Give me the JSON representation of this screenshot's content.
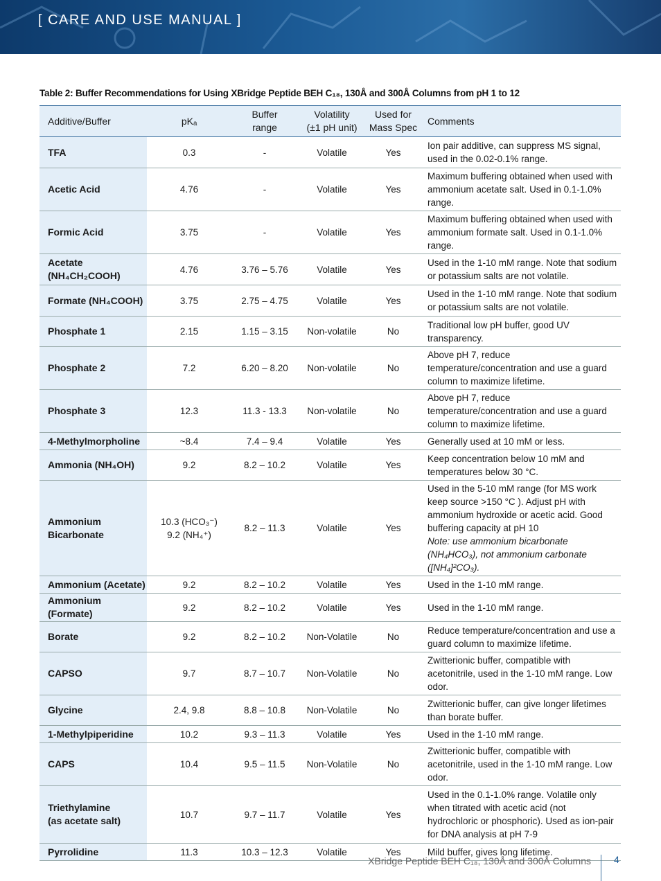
{
  "header": {
    "title": "[ CARE AND USE MANUAL ]"
  },
  "table": {
    "caption": "Table 2: Buffer Recommendations for Using XBridge Peptide BEH C₁₈, 130Å and 300Å Columns from pH 1 to 12",
    "columns": [
      "Additive/Buffer",
      "pKₐ",
      "Buffer\nrange",
      "Volatility\n(±1 pH unit)",
      "Used for\nMass Spec",
      "Comments"
    ],
    "rows": [
      {
        "additive": "TFA",
        "pka": "0.3",
        "range": "-",
        "volatility": "Volatile",
        "mass_spec": "Yes",
        "comment": "Ion pair additive, can suppress MS signal, used in the 0.02-0.1% range."
      },
      {
        "additive": "Acetic Acid",
        "pka": "4.76",
        "range": "-",
        "volatility": "Volatile",
        "mass_spec": "Yes",
        "comment": "Maximum buffering obtained when used with ammonium acetate salt. Used in 0.1-1.0% range."
      },
      {
        "additive": "Formic Acid",
        "pka": "3.75",
        "range": "-",
        "volatility": "Volatile",
        "mass_spec": "Yes",
        "comment": "Maximum buffering obtained when used with ammonium formate salt. Used in 0.1-1.0% range."
      },
      {
        "additive": "Acetate\n(NH₄CH₂COOH)",
        "pka": "4.76",
        "range": "3.76 – 5.76",
        "volatility": "Volatile",
        "mass_spec": "Yes",
        "comment": "Used in the 1-10 mM range. Note that sodium or potassium salts are not volatile."
      },
      {
        "additive": "Formate (NH₄COOH)",
        "pka": "3.75",
        "range": "2.75 – 4.75",
        "volatility": "Volatile",
        "mass_spec": "Yes",
        "comment": "Used in the 1-10 mM range. Note that sodium or potassium salts are not volatile."
      },
      {
        "additive": "Phosphate 1",
        "pka": "2.15",
        "range": "1.15 – 3.15",
        "volatility": "Non-volatile",
        "mass_spec": "No",
        "comment": "Traditional low pH buffer, good UV transparency."
      },
      {
        "additive": "Phosphate 2",
        "pka": "7.2",
        "range": "6.20 – 8.20",
        "volatility": "Non-volatile",
        "mass_spec": "No",
        "comment": "Above pH 7, reduce temperature/concentration and use a guard column to maximize lifetime."
      },
      {
        "additive": "Phosphate 3",
        "pka": "12.3",
        "range": "11.3 - 13.3",
        "volatility": "Non-volatile",
        "mass_spec": "No",
        "comment": "Above pH 7, reduce temperature/concentration and use a guard column to maximize lifetime."
      },
      {
        "additive": "4-Methylmorpholine",
        "pka": "~8.4",
        "range": "7.4 – 9.4",
        "volatility": "Volatile",
        "mass_spec": "Yes",
        "comment": "Generally used at 10 mM or less."
      },
      {
        "additive": "Ammonia (NH₄OH)",
        "pka": "9.2",
        "range": "8.2 – 10.2",
        "volatility": "Volatile",
        "mass_spec": "Yes",
        "comment": "Keep concentration below 10 mM and temperatures below 30 °C."
      },
      {
        "additive": "Ammonium\nBicarbonate",
        "pka": "10.3 (HCO₃⁻)\n9.2 (NH₄⁺)",
        "range": "8.2 – 11.3",
        "volatility": "Volatile",
        "mass_spec": "Yes",
        "comment": "Used in the 5-10 mM range (for MS work keep source >150 °C ). Adjust pH with ammonium hydroxide or acetic acid. Good buffering capacity at pH 10",
        "note": "Note: use ammonium bicarbonate (NH₄HCO₃), not ammonium carbonate ([NH₄]²CO₃)."
      },
      {
        "additive": "Ammonium (Acetate)",
        "pka": "9.2",
        "range": "8.2 – 10.2",
        "volatility": "Volatile",
        "mass_spec": "Yes",
        "comment": "Used in the 1-10 mM range."
      },
      {
        "additive": "Ammonium (Formate)",
        "pka": "9.2",
        "range": "8.2 – 10.2",
        "volatility": "Volatile",
        "mass_spec": "Yes",
        "comment": "Used in the 1-10 mM range."
      },
      {
        "additive": "Borate",
        "pka": "9.2",
        "range": "8.2 – 10.2",
        "volatility": "Non-Volatile",
        "mass_spec": "No",
        "comment": "Reduce temperature/concentration and use a guard column to maximize lifetime."
      },
      {
        "additive": "CAPSO",
        "pka": "9.7",
        "range": "8.7 – 10.7",
        "volatility": "Non-Volatile",
        "mass_spec": "No",
        "comment": "Zwitterionic buffer, compatible with acetonitrile, used in the 1-10 mM range. Low odor."
      },
      {
        "additive": "Glycine",
        "pka": "2.4, 9.8",
        "range": "8.8 – 10.8",
        "volatility": "Non-Volatile",
        "mass_spec": "No",
        "comment": "Zwitterionic buffer, can give longer lifetimes than borate buffer."
      },
      {
        "additive": "1-Methylpiperidine",
        "pka": "10.2",
        "range": "9.3 – 11.3",
        "volatility": "Volatile",
        "mass_spec": "Yes",
        "comment": "Used in the 1-10 mM range."
      },
      {
        "additive": "CAPS",
        "pka": "10.4",
        "range": "9.5 – 11.5",
        "volatility": "Non-Volatile",
        "mass_spec": "No",
        "comment": "Zwitterionic buffer, compatible with acetonitrile, used in the 1-10 mM range. Low odor."
      },
      {
        "additive": "Triethylamine\n(as acetate salt)",
        "pka": "10.7",
        "range": "9.7 – 11.7",
        "volatility": "Volatile",
        "mass_spec": "Yes",
        "comment": "Used in the 0.1-1.0% range. Volatile only when titrated with acetic acid (not hydrochloric or phosphoric). Used as ion-pair for DNA analysis at pH 7-9"
      },
      {
        "additive": "Pyrrolidine",
        "pka": "11.3",
        "range": "10.3 – 12.3",
        "volatility": "Volatile",
        "mass_spec": "Yes",
        "comment": "Mild buffer, gives long lifetime."
      }
    ]
  },
  "footer": {
    "text": "XBridge Peptide BEH C₁₈, 130Å and 300Å Columns",
    "page": "4"
  }
}
